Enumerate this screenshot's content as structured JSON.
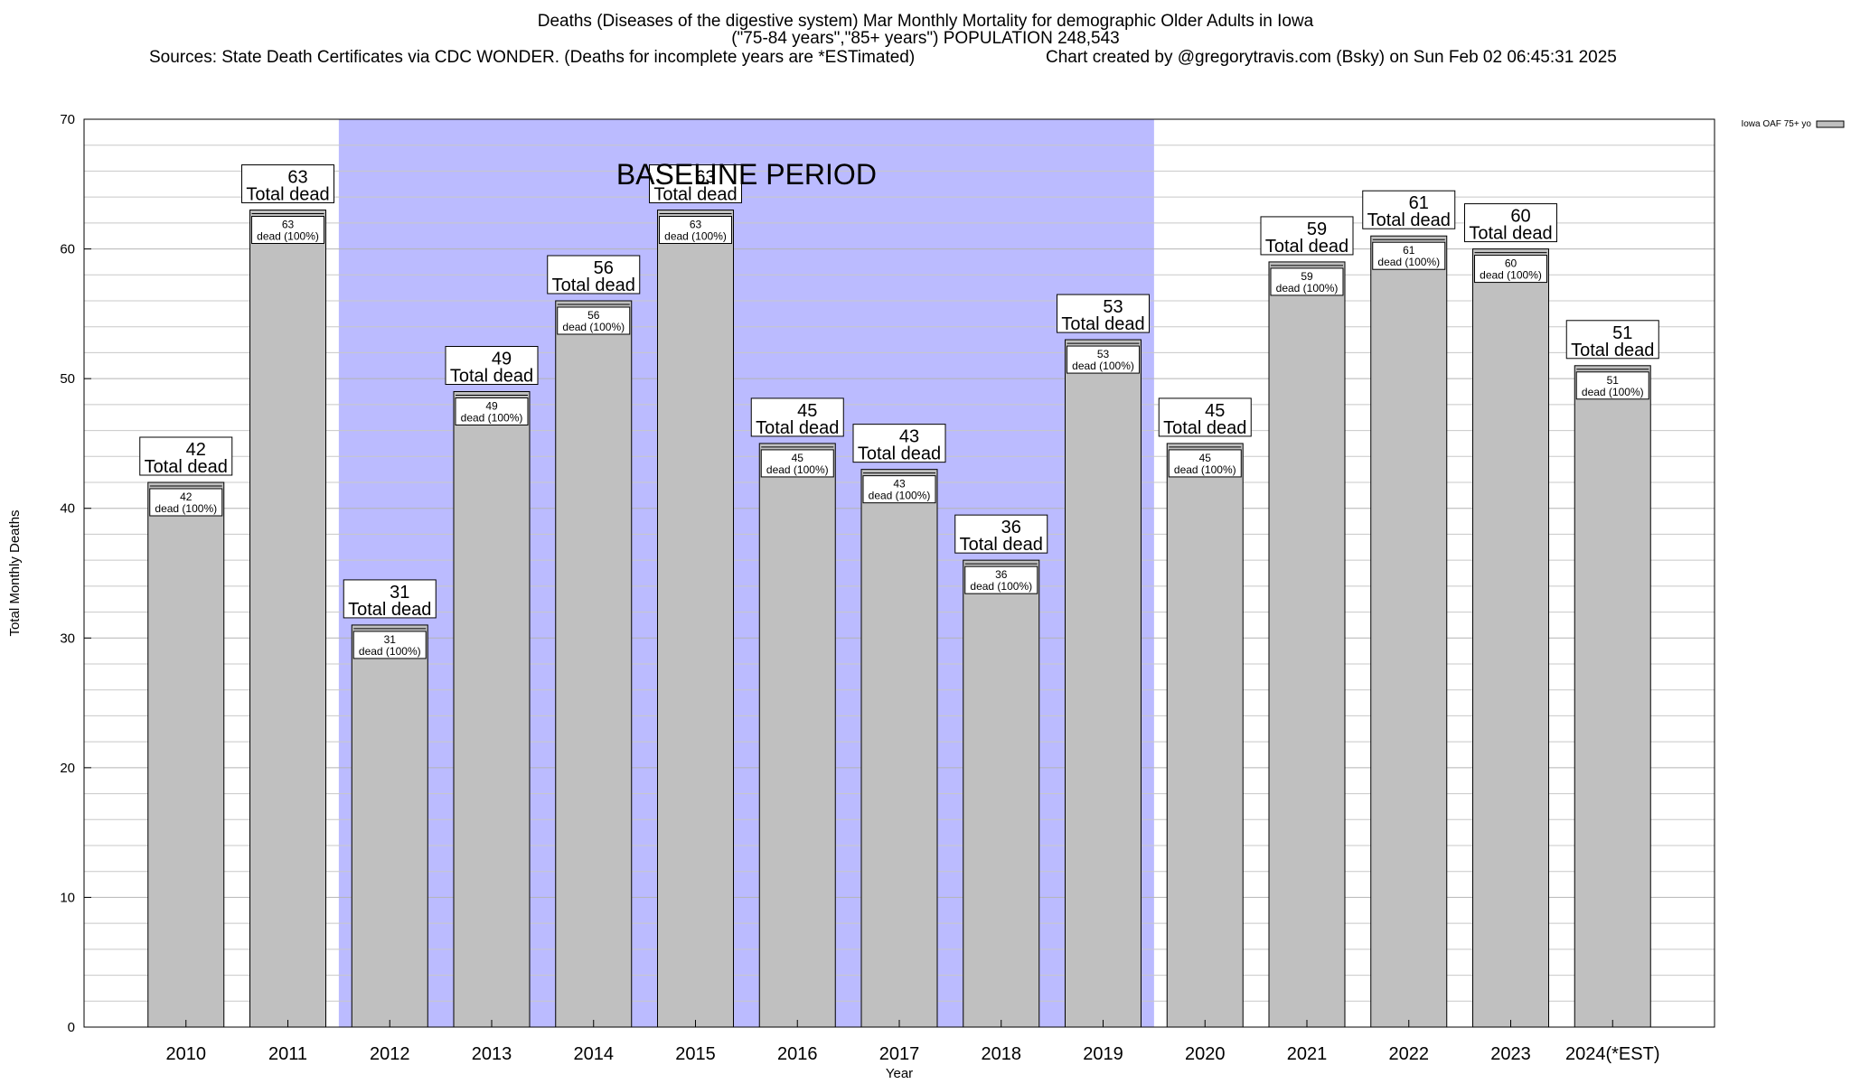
{
  "header": {
    "title_line1": "Deaths (Diseases of the digestive system) Mar Monthly Mortality for demographic Older Adults in Iowa",
    "title_line2": "(\"75-84 years\",\"85+ years\") POPULATION 248,543",
    "sources": "Sources: State Death Certificates via CDC WONDER. (Deaths for incomplete years are *ESTimated)",
    "credit": "Chart created by @gregorytravis.com (Bsky) on Sun Feb 02 06:45:31 2025"
  },
  "chart_data": {
    "type": "bar",
    "categories": [
      "2010",
      "2011",
      "2012",
      "2013",
      "2014",
      "2015",
      "2016",
      "2017",
      "2018",
      "2019",
      "2020",
      "2021",
      "2022",
      "2023",
      "2024(*EST)"
    ],
    "series": [
      {
        "name": "Iowa OAF 75+ yo",
        "values": [
          42,
          63,
          31,
          49,
          56,
          63,
          45,
          43,
          36,
          53,
          45,
          59,
          61,
          60,
          51
        ]
      }
    ],
    "total_label": "Total dead",
    "inner_label": "dead (100%)",
    "baseline": {
      "label": "BASELINE PERIOD",
      "from": "2012",
      "to": "2019"
    },
    "xlabel": "Year",
    "ylabel": "Total Monthly Deaths",
    "ylim": [
      0,
      70
    ],
    "yticks": [
      0,
      10,
      20,
      30,
      40,
      50,
      60,
      70
    ],
    "grid": true,
    "legend_position": "top-right",
    "colors": {
      "bar": "#c0c0c0",
      "baseline": "#bbbbff",
      "grid": "#c8c8c8"
    }
  }
}
